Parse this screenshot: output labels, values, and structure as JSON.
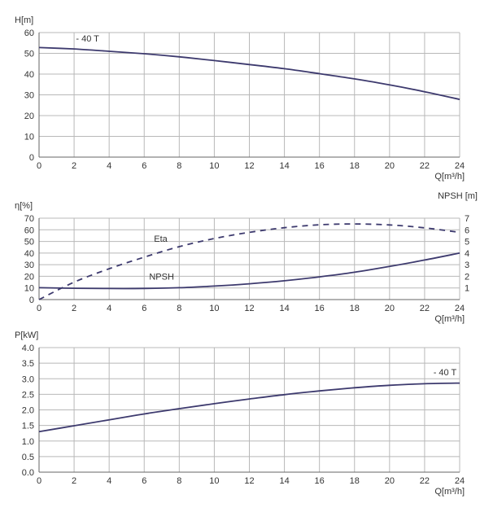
{
  "chart_data": [
    {
      "type": "line",
      "ylabel": "H[m]",
      "xlabel": "Q[m³/h]",
      "xlim": [
        0,
        24
      ],
      "ylim": [
        0,
        60
      ],
      "xticks": [
        "0",
        "2",
        "4",
        "6",
        "8",
        "10",
        "12",
        "14",
        "16",
        "18",
        "20",
        "22",
        "24"
      ],
      "yticks": [
        "0",
        "10",
        "20",
        "30",
        "40",
        "50",
        "60"
      ],
      "grid": true,
      "series": [
        {
          "name": "- 40 T",
          "color": "#3d3a6e",
          "x": [
            0,
            2,
            4,
            6,
            8,
            10,
            12,
            14,
            16,
            18,
            20,
            22,
            24
          ],
          "y": [
            52.8,
            52.1,
            51.0,
            49.8,
            48.3,
            46.5,
            44.6,
            42.6,
            40.2,
            37.7,
            34.8,
            31.5,
            27.8
          ]
        }
      ]
    },
    {
      "type": "line",
      "ylabel": "η[%]",
      "y2label": "NPSH [m]",
      "xlabel": "Q[m³/h]",
      "xlim": [
        0,
        24
      ],
      "ylim": [
        0,
        70
      ],
      "y2lim": [
        0,
        7
      ],
      "xticks": [
        "0",
        "2",
        "4",
        "6",
        "8",
        "10",
        "12",
        "14",
        "16",
        "18",
        "20",
        "22",
        "24"
      ],
      "yticks": [
        "0",
        "10",
        "20",
        "30",
        "40",
        "50",
        "60",
        "70"
      ],
      "y2ticks": [
        "1",
        "2",
        "3",
        "4",
        "5",
        "6",
        "7"
      ],
      "grid": true,
      "series": [
        {
          "name": "Eta",
          "axis": "left",
          "style": "dashed",
          "color": "#3d3a6e",
          "x": [
            0,
            2,
            4,
            6,
            8,
            10,
            12,
            14,
            16,
            18,
            20,
            22,
            24
          ],
          "y": [
            0,
            15,
            26.5,
            36.5,
            45.5,
            52.5,
            57.8,
            61.8,
            64.3,
            65.0,
            64.2,
            61.7,
            57.8
          ]
        },
        {
          "name": "NPSH",
          "axis": "right",
          "style": "solid",
          "color": "#3d3a6e",
          "x": [
            0,
            2,
            4,
            6,
            8,
            10,
            12,
            14,
            16,
            18,
            20,
            22,
            24
          ],
          "y": [
            1.02,
            0.97,
            0.95,
            0.96,
            1.02,
            1.16,
            1.36,
            1.62,
            1.95,
            2.35,
            2.85,
            3.4,
            4.0
          ]
        }
      ]
    },
    {
      "type": "line",
      "ylabel": "P[kW]",
      "xlabel": "Q[m³/h]",
      "xlim": [
        0,
        24
      ],
      "ylim": [
        0,
        4.0
      ],
      "xticks": [
        "0",
        "2",
        "4",
        "6",
        "8",
        "10",
        "12",
        "14",
        "16",
        "18",
        "20",
        "22",
        "24"
      ],
      "yticks": [
        "0.0",
        "0.5",
        "1.0",
        "1.5",
        "2.0",
        "2.5",
        "3.0",
        "3.5",
        "4.0"
      ],
      "grid": true,
      "series": [
        {
          "name": "- 40 T",
          "color": "#3d3a6e",
          "x": [
            0,
            2,
            4,
            6,
            8,
            10,
            12,
            14,
            16,
            18,
            20,
            22,
            24
          ],
          "y": [
            1.3,
            1.49,
            1.68,
            1.87,
            2.04,
            2.2,
            2.35,
            2.49,
            2.61,
            2.71,
            2.79,
            2.84,
            2.86
          ]
        }
      ]
    }
  ]
}
